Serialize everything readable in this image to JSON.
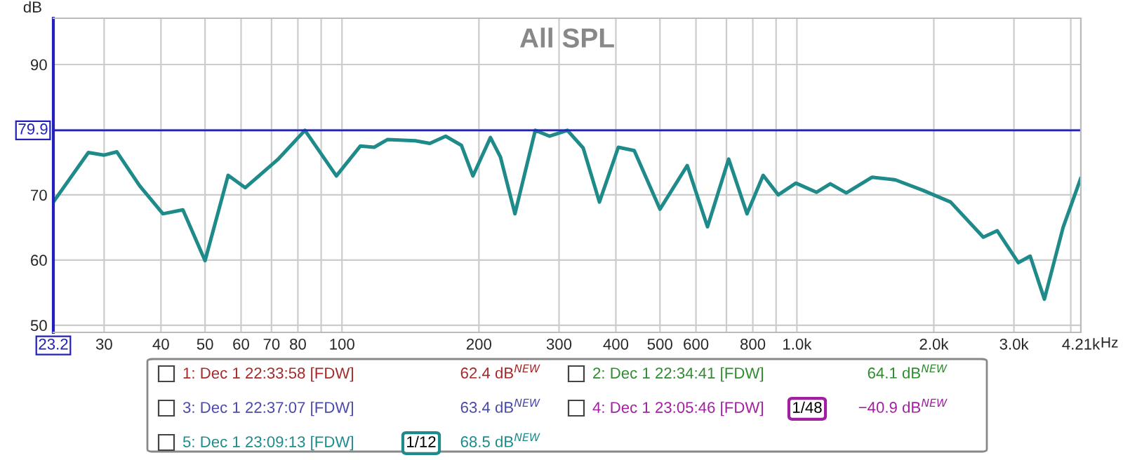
{
  "chart_data": {
    "type": "line",
    "title": "All SPL",
    "xlabel": "Hz",
    "ylabel": "dB",
    "log": "x",
    "grid": true,
    "legend": "bottom",
    "xlim": [
      23.2,
      4210
    ],
    "ylim": [
      48.9,
      97.1
    ],
    "xticks": [
      {
        "value": 23.2,
        "label": "23.2"
      },
      30,
      40,
      50,
      60,
      70,
      80,
      {
        "value": 90,
        "label": null
      },
      100,
      200,
      300,
      400,
      500,
      600,
      {
        "value": 700,
        "label": null
      },
      800,
      {
        "value": 900,
        "label": null
      },
      {
        "value": 1000,
        "label": "1.0k"
      },
      {
        "value": 2000,
        "label": "2.0k"
      },
      {
        "value": 3000,
        "label": "3.0k"
      },
      {
        "value": 4000,
        "label": null
      },
      {
        "value": 4210,
        "label": "4.21k"
      }
    ],
    "yticks": [
      50,
      60,
      70,
      {
        "value": 80,
        "label": null
      },
      90
    ],
    "ref_lines": [
      {
        "axis": "y",
        "value": 79.9,
        "label": "79.9",
        "color": "#2222bb"
      }
    ],
    "series": [
      {
        "name": "5: Dec 1 23:09:13 [FDW]",
        "color": "#1f8a8a",
        "x": [
          23.2,
          27.7,
          30,
          32,
          35.9,
          40.4,
          44.7,
          50,
          56.2,
          61.3,
          72.2,
          82.9,
          97.2,
          109.8,
          117.7,
          126,
          145,
          156,
          169,
          183,
          194,
          212,
          223,
          240,
          266,
          286,
          313,
          339,
          368,
          405,
          439,
          500,
          574,
          636,
          708,
          777,
          843,
          910,
          995,
          1105,
          1184,
          1284,
          1462,
          1646,
          1892,
          2177,
          2569,
          2757,
          3068,
          3257,
          3500,
          3847,
          4210
        ],
        "values": [
          68.9,
          76.5,
          76.1,
          76.6,
          71.4,
          67.1,
          67.7,
          59.9,
          73.0,
          71.1,
          75.4,
          79.9,
          72.9,
          77.5,
          77.3,
          78.5,
          78.3,
          77.9,
          79.0,
          77.6,
          72.9,
          78.8,
          75.8,
          67.1,
          79.9,
          79.0,
          79.9,
          77.2,
          68.9,
          77.3,
          76.8,
          67.8,
          74.5,
          65.1,
          75.5,
          67.1,
          73.0,
          70.0,
          71.8,
          70.4,
          71.7,
          70.3,
          72.7,
          72.3,
          70.7,
          68.9,
          63.5,
          64.5,
          59.6,
          60.6,
          54.0,
          65.0,
          72.6
        ]
      }
    ],
    "annotations": [
      "1: Dec 1 22:33:58 [FDW]",
      "62.4 dB$^{NEW}$",
      "2: Dec 1 22:34:41 [FDW]",
      "64.1 dB$^{NEW}$",
      "3: Dec 1 22:37:07 [FDW]",
      "63.4 dB$^{NEW}$",
      "4: Dec 1 23:05:46 [FDW]",
      "1/48",
      "−40.9 dB$^{NEW}$",
      "1/12",
      "68.5 dB$^{NEW}$"
    ]
  }
}
